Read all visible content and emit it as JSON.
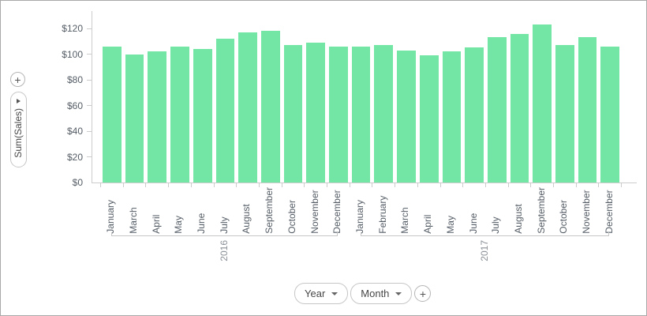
{
  "icons": {
    "add": "+",
    "caret_down": "caret-down",
    "caret_right": "caret-right"
  },
  "chart_data": {
    "type": "bar",
    "title": "",
    "ylabel": "Sum(Sales)",
    "xlabel": "",
    "legend": "none",
    "grid": false,
    "bar_color": "#73e6a5",
    "ylim": [
      0,
      130
    ],
    "y_ticks": [
      {
        "label": "$0",
        "value": 0
      },
      {
        "label": "$20",
        "value": 20
      },
      {
        "label": "$40",
        "value": 40
      },
      {
        "label": "$60",
        "value": 60
      },
      {
        "label": "$80",
        "value": 80
      },
      {
        "label": "$100",
        "value": 100
      },
      {
        "label": "$120",
        "value": 120
      }
    ],
    "groups": [
      {
        "label": "2016",
        "categories": [
          "January",
          "March",
          "April",
          "May",
          "June",
          "July",
          "August",
          "September",
          "October",
          "November",
          "December"
        ],
        "values": [
          106,
          100,
          102,
          106,
          104,
          112,
          117,
          118,
          107,
          109,
          106
        ]
      },
      {
        "label": "2017",
        "categories": [
          "January",
          "February",
          "March",
          "April",
          "May",
          "June",
          "July",
          "August",
          "September",
          "October",
          "November",
          "December"
        ],
        "values": [
          106,
          107,
          103,
          99,
          102,
          105,
          113,
          116,
          123,
          107,
          113,
          106
        ]
      }
    ]
  },
  "left_controls": {
    "add_button_label": "+",
    "measure_pill": {
      "label": "Sum(Sales)"
    }
  },
  "bottom_controls": {
    "fields": [
      {
        "label": "Year"
      },
      {
        "label": "Month"
      }
    ],
    "add_button_label": "+"
  }
}
